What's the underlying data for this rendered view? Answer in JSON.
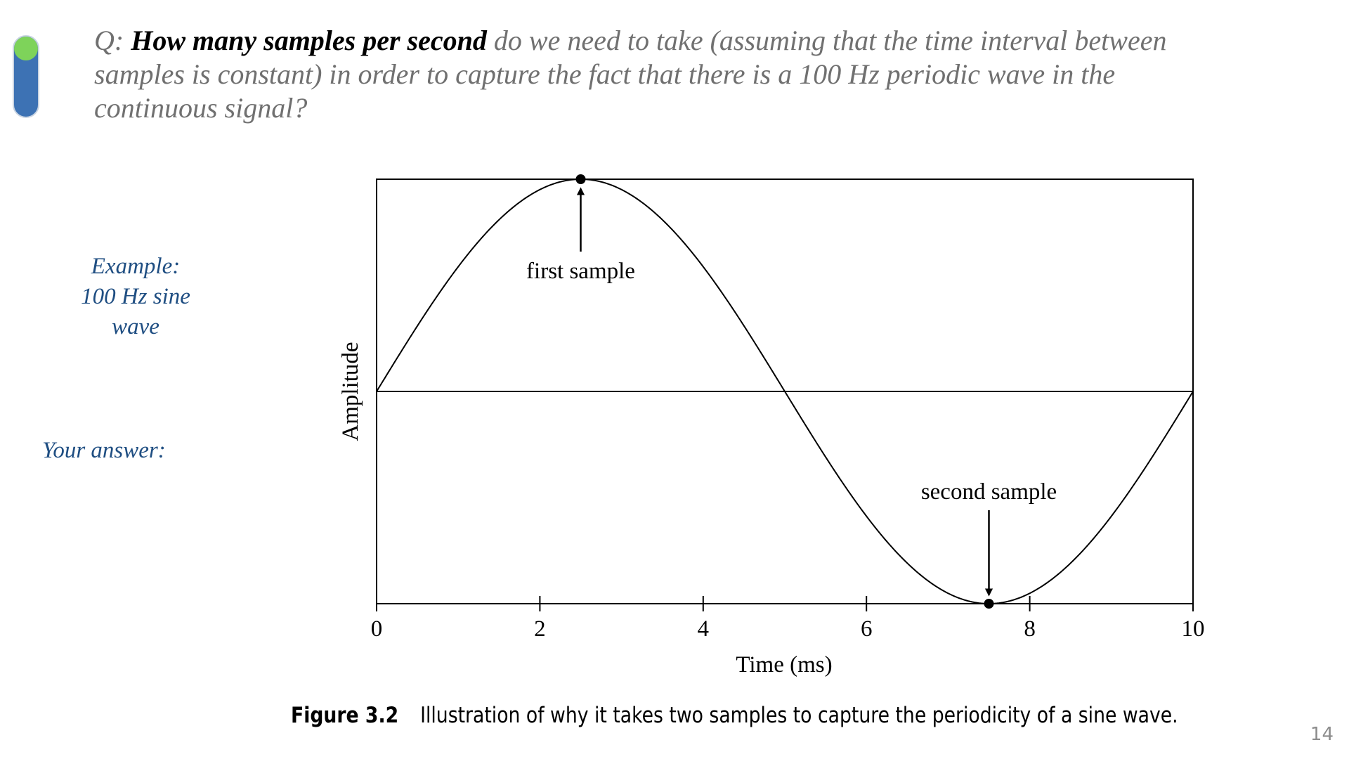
{
  "slide": {
    "question_prefix": "Q: ",
    "question_bold": "How many samples per second",
    "question_rest": " do we need to take (assuming that the time interval between samples is constant) in order to capture the fact that there is a 100 Hz periodic wave in the continuous signal?",
    "example_lines": [
      "Example:",
      "100 Hz sine",
      "wave"
    ],
    "answer_label": "Your answer:",
    "page_number": "14",
    "caption_label": "Figure 3.2",
    "caption_text": "Illustration of why it takes two samples to capture the periodicity of a sine wave.",
    "accent_color": "#1f4e82",
    "progress_colors": {
      "dot": "#7ed35a",
      "pill": "#3d72b4"
    }
  },
  "chart_data": {
    "type": "line",
    "title": "",
    "xlabel": "Time (ms)",
    "ylabel": "Amplitude",
    "xlim": [
      0,
      10
    ],
    "ylim": [
      -1,
      1
    ],
    "xticks": [
      0,
      2,
      4,
      6,
      8,
      10
    ],
    "function": "sine",
    "frequency_hz": 100,
    "grid": false,
    "zero_line": true,
    "samples": [
      {
        "x": 2.5,
        "y": 1,
        "label": "first sample",
        "arrow": "up"
      },
      {
        "x": 7.5,
        "y": -1,
        "label": "second sample",
        "arrow": "down"
      }
    ]
  }
}
